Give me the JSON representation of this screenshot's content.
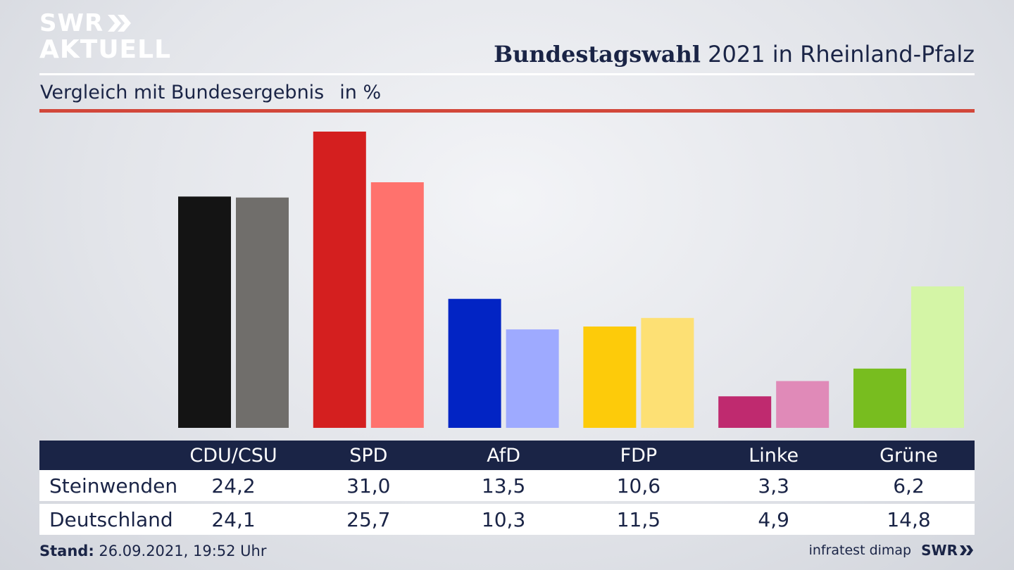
{
  "logo": {
    "line1": "SWR",
    "line2": "AKTUELL"
  },
  "title_bold": "Bundestagswahl",
  "title_rest": " 2021 in Rheinland-Pfalz",
  "subtitle": "Vergleich mit Bundesergebnis",
  "unit": "in %",
  "chart_data": {
    "type": "bar",
    "categories": [
      "CDU/CSU",
      "SPD",
      "AfD",
      "FDP",
      "Linke",
      "Grüne"
    ],
    "series": [
      {
        "name": "Steinwenden",
        "values": [
          24.2,
          31.0,
          13.5,
          10.6,
          3.3,
          6.2
        ]
      },
      {
        "name": "Deutschland",
        "values": [
          24.1,
          25.7,
          10.3,
          11.5,
          4.9,
          14.8
        ]
      }
    ],
    "colors": {
      "Steinwenden": [
        "#141414",
        "#d41f1f",
        "#0224c4",
        "#fdcb0a",
        "#bf2a6f",
        "#78bd1f"
      ],
      "Deutschland": [
        "#706e6b",
        "#ff726d",
        "#9eaaff",
        "#fde074",
        "#e08ab8",
        "#d4f5a6"
      ]
    },
    "ylim": [
      0,
      31
    ],
    "grid": false,
    "legend": "none"
  },
  "table": {
    "rows": [
      {
        "label": "Steinwenden",
        "values": [
          "24,2",
          "31,0",
          "13,5",
          "10,6",
          "3,3",
          "6,2"
        ]
      },
      {
        "label": "Deutschland",
        "values": [
          "24,1",
          "25,7",
          "10,3",
          "11,5",
          "4,9",
          "14,8"
        ]
      }
    ]
  },
  "footer": {
    "stand_label": "Stand:",
    "stand_value": " 26.09.2021, 19:52 Uhr",
    "source": "infratest dimap",
    "brand": "SWR"
  },
  "theme": {
    "navy": "#1a2446",
    "accent_red": "#d2473a"
  }
}
